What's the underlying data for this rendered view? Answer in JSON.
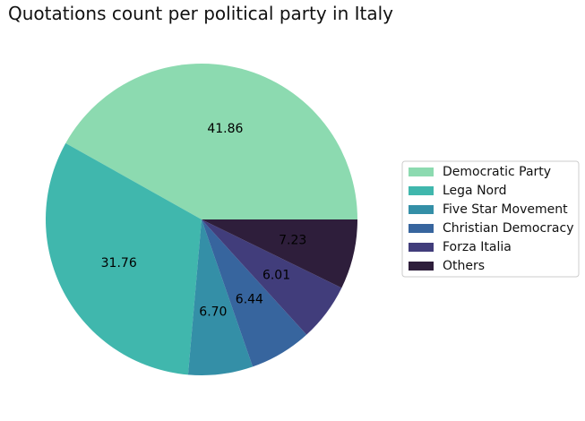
{
  "chart_data": {
    "type": "pie",
    "title": "Quotations count per political party in Italy",
    "slices": [
      {
        "label": "Democratic Party",
        "value": 41.86,
        "color": "#8CDAB0"
      },
      {
        "label": "Lega Nord",
        "value": 31.76,
        "color": "#40B7AD"
      },
      {
        "label": "Five Star Movement",
        "value": 6.7,
        "color": "#348FA7"
      },
      {
        "label": "Christian Democracy",
        "value": 6.44,
        "color": "#37659E"
      },
      {
        "label": "Forza Italia",
        "value": 6.01,
        "color": "#413D7B"
      },
      {
        "label": "Others",
        "value": 7.23,
        "color": "#2E1E3B"
      }
    ],
    "start_angle_deg": 0,
    "direction": "counterclockwise",
    "value_format": "%.2f",
    "legend_position": "right"
  }
}
